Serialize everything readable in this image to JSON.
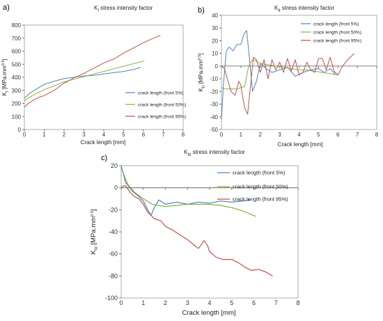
{
  "chart_data": [
    {
      "type": "line",
      "panel_label": "a)",
      "title_main": "K",
      "title_sub": "I",
      "title_rest": " stress intensity factor",
      "xlabel": "Crack length [mm]",
      "ylabel_main": "K",
      "ylabel_sub": "I",
      "ylabel_rest": " [MPa.mm",
      "ylabel_sup": "0.5",
      "ylabel_end": "]",
      "xlim": [
        0,
        8
      ],
      "ylim": [
        0,
        800
      ],
      "xticks": [
        "0",
        "1",
        "2",
        "3",
        "4",
        "5",
        "6",
        "7",
        "8"
      ],
      "yticks": [
        "0",
        "100",
        "200",
        "300",
        "400",
        "500",
        "600",
        "700",
        "800"
      ],
      "grid": false,
      "legend_position": "right",
      "series": [
        {
          "name": "crack length (front 5%)",
          "color": "#4f81bd",
          "x": [
            0,
            0.3,
            0.6,
            1,
            1.5,
            2,
            2.5,
            3,
            3.5,
            4,
            4.5,
            5,
            5.5,
            5.85
          ],
          "y": [
            240,
            280,
            310,
            345,
            370,
            390,
            400,
            410,
            415,
            425,
            435,
            445,
            460,
            475
          ]
        },
        {
          "name": "crack length (front 50%)",
          "color": "#7fb241",
          "x": [
            0,
            0.3,
            0.6,
            1,
            1.5,
            2,
            2.5,
            3,
            3.5,
            4,
            4.5,
            5,
            5.5,
            6.05
          ],
          "y": [
            220,
            250,
            275,
            305,
            335,
            365,
            385,
            405,
            425,
            445,
            465,
            485,
            505,
            525
          ]
        },
        {
          "name": "crack length (front 95%)",
          "color": "#c0504d",
          "x": [
            0,
            0.2,
            0.5,
            0.8,
            1,
            1.3,
            1.5,
            2,
            2.5,
            3,
            3.5,
            4,
            4.5,
            5,
            5.5,
            6,
            6.5,
            6.85
          ],
          "y": [
            170,
            200,
            230,
            250,
            260,
            285,
            300,
            355,
            395,
            430,
            470,
            510,
            540,
            585,
            625,
            665,
            700,
            720
          ]
        }
      ]
    },
    {
      "type": "line",
      "panel_label": "b)",
      "title_main": "K",
      "title_sub": "II",
      "title_rest": " stress intensity factor",
      "xlabel": "Crack length [mm]",
      "ylabel_main": "K",
      "ylabel_sub": "II",
      "ylabel_rest": " [MPa.mm",
      "ylabel_sup": "0.5",
      "ylabel_end": "]",
      "xlim": [
        0,
        8
      ],
      "ylim": [
        -50,
        40
      ],
      "xticks": [
        "0",
        "1",
        "2",
        "3",
        "4",
        "5",
        "6",
        "7",
        "8"
      ],
      "yticks": [
        "-50",
        "-40",
        "-30",
        "-20",
        "-10",
        "0",
        "10",
        "20",
        "30",
        "40"
      ],
      "grid": false,
      "legend_position": "top-right",
      "series": [
        {
          "name": "crack length (front 5%)",
          "color": "#4f81bd",
          "x": [
            0,
            0.1,
            0.25,
            0.4,
            0.6,
            0.8,
            1.0,
            1.15,
            1.3,
            1.45,
            1.6,
            1.8,
            2.0,
            2.3,
            2.6,
            3.0,
            3.4,
            3.8,
            4.2,
            4.6,
            5.0,
            5.3,
            5.6,
            5.9
          ],
          "y": [
            -42,
            -15,
            12,
            15,
            12,
            17,
            17,
            25,
            28,
            5,
            -20,
            -12,
            2,
            -2,
            -5,
            -3,
            -1,
            -8,
            -5,
            -3,
            -2,
            -5,
            -2,
            -7
          ]
        },
        {
          "name": "crack length (front 50%)",
          "color": "#7fb241",
          "x": [
            0,
            0.2,
            0.5,
            0.8,
            1.0,
            1.2,
            1.4,
            1.6,
            1.8,
            2.0,
            2.4,
            2.8,
            3.2,
            3.6,
            4.0,
            4.4,
            4.8,
            5.2,
            5.6,
            6.0
          ],
          "y": [
            -17,
            -18,
            -18,
            -18,
            -17,
            -16,
            0,
            5,
            4,
            2,
            1,
            0,
            -1,
            -2,
            -3,
            -3,
            -4,
            -5,
            -6,
            -7
          ]
        },
        {
          "name": "crack length (front 95%)",
          "color": "#c0504d",
          "x": [
            0,
            0.15,
            0.3,
            0.5,
            0.7,
            0.9,
            1.0,
            1.1,
            1.2,
            1.35,
            1.5,
            1.65,
            1.8,
            2.0,
            2.2,
            2.4,
            2.6,
            2.8,
            3.0,
            3.2,
            3.4,
            3.6,
            3.8,
            4.0,
            4.2,
            4.4,
            4.6,
            4.8,
            5.0,
            5.2,
            5.4,
            5.6,
            5.8,
            6.0,
            6.2,
            6.5,
            6.85
          ],
          "y": [
            0,
            -2,
            -10,
            -20,
            -23,
            -12,
            -15,
            -25,
            -33,
            -38,
            -15,
            7,
            5,
            -5,
            5,
            -10,
            5,
            -3,
            3,
            -5,
            6,
            -4,
            5,
            -7,
            -5,
            3,
            -3,
            -5,
            6,
            6,
            -3,
            7,
            -4,
            -7,
            -1,
            5,
            10
          ]
        }
      ]
    },
    {
      "type": "line",
      "panel_label": "c)",
      "title_main": "K",
      "title_sub": "III",
      "title_rest": " stress intensity factor",
      "xlabel": "Crack length [mm]",
      "ylabel_main": "K",
      "ylabel_sub": "III",
      "ylabel_rest": " [MPa.mm",
      "ylabel_sup": "0.5",
      "ylabel_end": "]",
      "xlim": [
        0,
        8
      ],
      "ylim": [
        -100,
        20
      ],
      "xticks": [
        "0",
        "1",
        "2",
        "3",
        "4",
        "5",
        "6",
        "7",
        "8"
      ],
      "yticks": [
        "-100",
        "-80",
        "-60",
        "-40",
        "-20",
        "0",
        "20"
      ],
      "grid": false,
      "legend_position": "top-right",
      "series": [
        {
          "name": "crack length (front 5%)",
          "color": "#4f81bd",
          "x": [
            0,
            0.2,
            0.5,
            0.8,
            1.0,
            1.2,
            1.35,
            1.5,
            1.7,
            2.0,
            2.5,
            3.0,
            3.5,
            4.0,
            4.5,
            5.0,
            5.5,
            5.85
          ],
          "y": [
            20,
            5,
            -3,
            -8,
            -12,
            -20,
            -25,
            -18,
            -11,
            -15,
            -13,
            -15,
            -13,
            -14,
            -12,
            -13,
            -12,
            -11
          ]
        },
        {
          "name": "crack length (front 50%)",
          "color": "#7fb241",
          "x": [
            0,
            0.3,
            0.6,
            1.0,
            1.4,
            2.0,
            2.5,
            3.0,
            3.5,
            4.0,
            4.5,
            5.0,
            5.5,
            6.1
          ],
          "y": [
            18,
            3,
            -4,
            -10,
            -15,
            -17,
            -16,
            -15,
            -15,
            -15,
            -16,
            -18,
            -21,
            -26
          ]
        },
        {
          "name": "crack length (front 95%)",
          "color": "#c0504d",
          "x": [
            0,
            0.2,
            0.4,
            0.6,
            0.8,
            1.0,
            1.2,
            1.35,
            1.5,
            1.8,
            2.0,
            2.3,
            2.6,
            3.0,
            3.3,
            3.5,
            3.75,
            3.9,
            4.0,
            4.3,
            4.6,
            5.0,
            5.3,
            5.6,
            5.9,
            6.2,
            6.5,
            6.85
          ],
          "y": [
            1,
            2,
            -4,
            -8,
            -10,
            -15,
            -22,
            -25,
            -28,
            -30,
            -35,
            -38,
            -42,
            -47,
            -52,
            -55,
            -48,
            -52,
            -58,
            -63,
            -65,
            -65,
            -68,
            -72,
            -75,
            -74,
            -76,
            -80
          ]
        }
      ]
    }
  ]
}
